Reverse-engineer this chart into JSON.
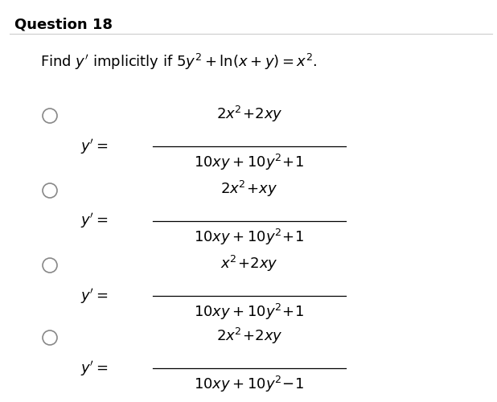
{
  "title": "Question 18",
  "background_color": "#ffffff",
  "options": [
    {
      "numerator": "2x²+ 2xy",
      "denominator": "10xy + 10y²+ 1"
    },
    {
      "numerator": "2x²+ xy",
      "denominator": "10xy + 10y²+ 1"
    },
    {
      "numerator": "x²+ 2xy",
      "denominator": "10xy + 10y²+ 1"
    },
    {
      "numerator": "2x²+ 2xy",
      "denominator": "10xy + 10y²− 1"
    }
  ],
  "title_fontsize": 12,
  "question_fontsize": 12,
  "option_fontsize": 12,
  "label_color": "#000000",
  "line_color": "#aaaaaa",
  "circle_color": "#888888"
}
